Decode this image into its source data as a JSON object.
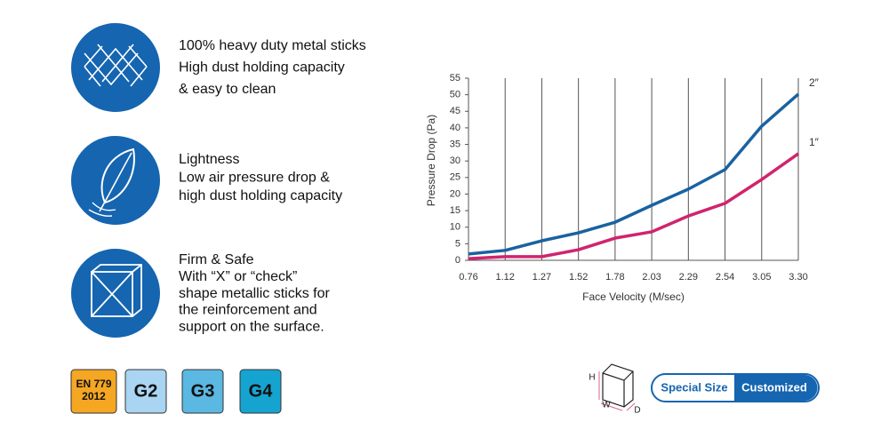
{
  "features": [
    {
      "lines": [
        "100% heavy duty metal sticks",
        "High dust holding capacity",
        "& easy to clean"
      ]
    },
    {
      "lines": [
        "Lightness",
        "Low air pressure drop &",
        "high dust holding capacity"
      ]
    },
    {
      "lines": [
        "Firm & Safe",
        "With “X” or “check”",
        "shape metallic sticks for",
        "the reinforcement and",
        "support on the surface."
      ]
    }
  ],
  "standard": [
    "EN 779",
    "2012"
  ],
  "grades": [
    "G2",
    "G3",
    "G4"
  ],
  "dimensions": [
    "H",
    "W",
    "D"
  ],
  "size_options": [
    "Special Size",
    "Customized"
  ],
  "chart_data": {
    "type": "line",
    "x_label": "Face Velocity (M/sec)",
    "y_label": "Pressure Drop (Pa)",
    "categories": [
      "0.76",
      "1.12",
      "1.27",
      "1.52",
      "1.78",
      "2.03",
      "2.29",
      "2.54",
      "3.05",
      "3.30"
    ],
    "series": [
      {
        "name": "2″",
        "color": "#1a62a0",
        "values": [
          1.9,
          3,
          5.9,
          8.3,
          11.5,
          16.6,
          21.5,
          27.4,
          40.5,
          50.2
        ]
      },
      {
        "name": "1″",
        "color": "#d0246e",
        "values": [
          0.5,
          1.1,
          1.1,
          3.2,
          6.7,
          8.6,
          13.4,
          17.2,
          24.4,
          32.2
        ]
      }
    ],
    "ylim": [
      0,
      55
    ],
    "yticks": [
      0,
      5,
      10,
      15,
      20,
      25,
      30,
      35,
      40,
      45,
      50,
      55
    ],
    "grid": true
  }
}
